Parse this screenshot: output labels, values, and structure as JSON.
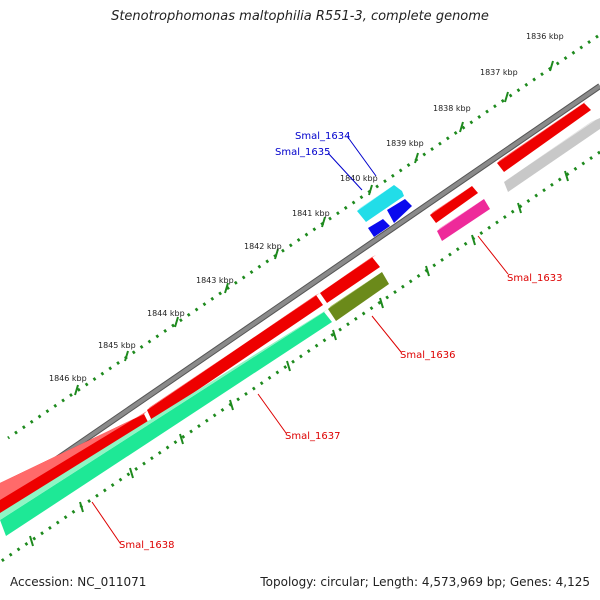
{
  "title": "Stenotrophomonas maltophilia R551-3, complete genome",
  "footer": {
    "accession": "Accession: NC_011071",
    "summary": "Topology: circular; Length: 4,573,969 bp; Genes: 4,125"
  },
  "scale_labels": [
    "1836 kbp",
    "1837 kbp",
    "1838 kbp",
    "1839 kbp",
    "1840 kbp",
    "1841 kbp",
    "1842 kbp",
    "1843 kbp",
    "1844 kbp",
    "1845 kbp",
    "1846 kbp"
  ],
  "gene_labels": [
    {
      "name": "Smal_1633",
      "color": "#dd0000"
    },
    {
      "name": "Smal_1634",
      "color": "#0000cc"
    },
    {
      "name": "Smal_1635",
      "color": "#0000cc"
    },
    {
      "name": "Smal_1636",
      "color": "#dd0000"
    },
    {
      "name": "Smal_1637",
      "color": "#dd0000"
    },
    {
      "name": "Smal_1638",
      "color": "#dd0000"
    }
  ],
  "colors": {
    "backbone": "#7a7a7a",
    "scale_dots": "#1e8a1e",
    "feature_red": "#ee0000",
    "feature_grey": "#c8c8c8",
    "feature_magenta": "#ee2a9a",
    "feature_cyan": "#22dde8",
    "feature_blue": "#0a0aee",
    "feature_olive": "#6b8a1a",
    "feature_green": "#1ee896"
  }
}
